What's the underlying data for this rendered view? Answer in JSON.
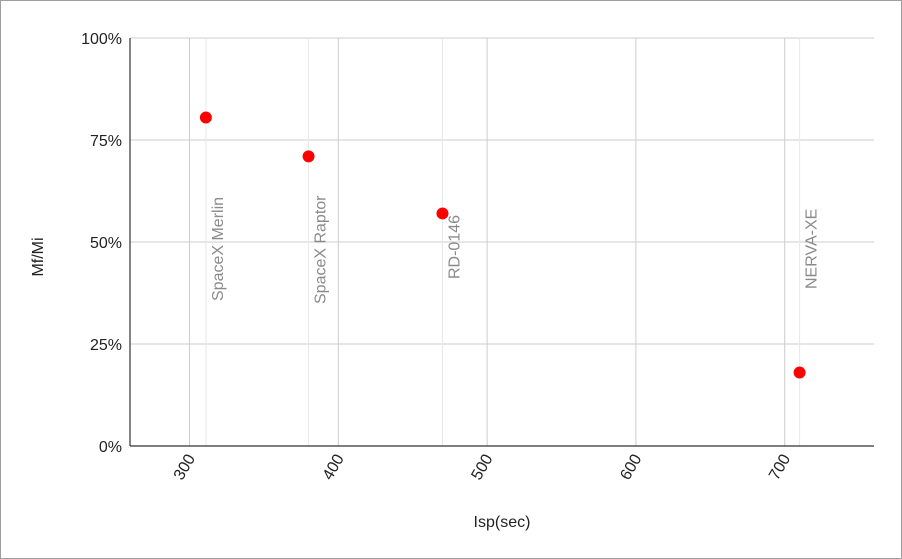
{
  "chart_data": {
    "type": "scatter",
    "title": "",
    "xlabel": "Isp(sec)",
    "ylabel": "Mf/Mi",
    "xlim": [
      260,
      760
    ],
    "ylim": [
      0,
      1
    ],
    "x_ticks": [
      300,
      400,
      500,
      600,
      700
    ],
    "x_tick_labels": [
      "300",
      "400",
      "500",
      "600",
      "700"
    ],
    "y_ticks": [
      0,
      0.25,
      0.5,
      0.75,
      1
    ],
    "y_tick_labels": [
      "0%",
      "25%",
      "50%",
      "75%",
      "100%"
    ],
    "grid": true,
    "legend": "none",
    "marker_color": "#ff0000",
    "points": [
      {
        "label": "SpaceX Merlin",
        "x": 311,
        "y": 0.805
      },
      {
        "label": "SpaceX Raptor",
        "x": 380,
        "y": 0.71
      },
      {
        "label": "RD-0146",
        "x": 470,
        "y": 0.57
      },
      {
        "label": "NERVA-XE",
        "x": 710,
        "y": 0.18
      }
    ]
  }
}
